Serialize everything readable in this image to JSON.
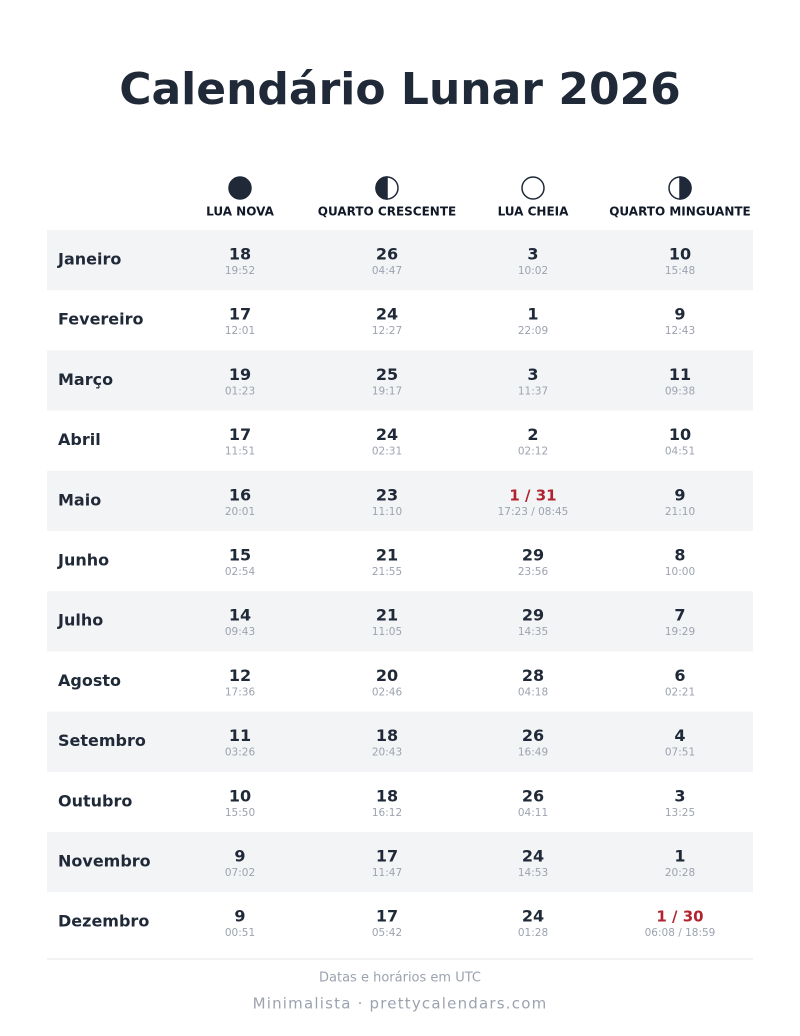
{
  "header": {
    "title": "Calendário Lunar 2026"
  },
  "table": {
    "columns": [
      "LUA NOVA",
      "QUARTO CRESCENTE",
      "LUA CHEIA",
      "QUARTO MINGUANTE"
    ],
    "rows": [
      {
        "month": "Janeiro",
        "cells": [
          {
            "day": 18,
            "time": "19:52"
          },
          {
            "day": 26,
            "time": "04:47"
          },
          {
            "day": 3,
            "time": "10:02"
          },
          {
            "day": 10,
            "time": "15:48"
          }
        ]
      },
      {
        "month": "Fevereiro",
        "cells": [
          {
            "day": 17,
            "time": "12:01"
          },
          {
            "day": 24,
            "time": "12:27"
          },
          {
            "day": 1,
            "time": "22:09"
          },
          {
            "day": 9,
            "time": "12:43"
          }
        ]
      },
      {
        "month": "Março",
        "cells": [
          {
            "day": 19,
            "time": "01:23"
          },
          {
            "day": 25,
            "time": "19:17"
          },
          {
            "day": 3,
            "time": "11:37"
          },
          {
            "day": 11,
            "time": "09:38"
          }
        ]
      },
      {
        "month": "Abril",
        "cells": [
          {
            "day": 17,
            "time": "11:51"
          },
          {
            "day": 24,
            "time": "02:31"
          },
          {
            "day": 2,
            "time": "02:12"
          },
          {
            "day": 10,
            "time": "04:51"
          }
        ]
      },
      {
        "month": "Maio",
        "cells": [
          {
            "day": 16,
            "time": "20:01"
          },
          {
            "day": 23,
            "time": "11:10"
          },
          {
            "day": "1 / 31",
            "time": "17:23 / 08:45"
          },
          {
            "day": 9,
            "time": "21:10"
          }
        ]
      },
      {
        "month": "Junho",
        "cells": [
          {
            "day": 15,
            "time": "02:54"
          },
          {
            "day": 21,
            "time": "21:55"
          },
          {
            "day": 29,
            "time": "23:56"
          },
          {
            "day": 8,
            "time": "10:00"
          }
        ]
      },
      {
        "month": "Julho",
        "cells": [
          {
            "day": 14,
            "time": "09:43"
          },
          {
            "day": 21,
            "time": "11:05"
          },
          {
            "day": 29,
            "time": "14:35"
          },
          {
            "day": 7,
            "time": "19:29"
          }
        ]
      },
      {
        "month": "Agosto",
        "cells": [
          {
            "day": 12,
            "time": "17:36"
          },
          {
            "day": 20,
            "time": "02:46"
          },
          {
            "day": 28,
            "time": "04:18"
          },
          {
            "day": 6,
            "time": "02:21"
          }
        ]
      },
      {
        "month": "Setembro",
        "cells": [
          {
            "day": 11,
            "time": "03:26"
          },
          {
            "day": 18,
            "time": "20:43"
          },
          {
            "day": 26,
            "time": "16:49"
          },
          {
            "day": 4,
            "time": "07:51"
          }
        ]
      },
      {
        "month": "Outubro",
        "cells": [
          {
            "day": 10,
            "time": "15:50"
          },
          {
            "day": 18,
            "time": "16:12"
          },
          {
            "day": 26,
            "time": "04:11"
          },
          {
            "day": 3,
            "time": "13:25"
          }
        ]
      },
      {
        "month": "Novembro",
        "cells": [
          {
            "day": 9,
            "time": "07:02"
          },
          {
            "day": 17,
            "time": "11:47"
          },
          {
            "day": 24,
            "time": "14:53"
          },
          {
            "day": 1,
            "time": "20:28"
          }
        ]
      },
      {
        "month": "Dezembro",
        "cells": [
          {
            "day": 9,
            "time": "00:51"
          },
          {
            "day": 17,
            "time": "05:42"
          },
          {
            "day": 24,
            "time": "01:28"
          },
          {
            "day": "1 / 30",
            "time": "06:08 / 18:59"
          }
        ]
      }
    ]
  },
  "footer": {
    "note": "Datas e horários em UTC",
    "credit": "Minimalista · prettycalendars.com"
  }
}
